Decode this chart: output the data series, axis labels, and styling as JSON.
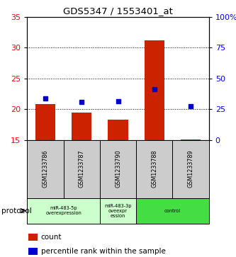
{
  "title": "GDS5347 / 1553401_at",
  "samples": [
    "GSM1233786",
    "GSM1233787",
    "GSM1233790",
    "GSM1233788",
    "GSM1233789"
  ],
  "bar_values": [
    20.8,
    19.5,
    18.3,
    31.2,
    15.1
  ],
  "bar_color": "#cc2200",
  "marker_values_left": [
    21.8,
    21.2,
    21.3,
    23.2,
    20.5
  ],
  "marker_color": "#0000cc",
  "left_ylim": [
    15,
    35
  ],
  "left_yticks": [
    15,
    20,
    25,
    30,
    35
  ],
  "right_ylim": [
    0,
    100
  ],
  "right_yticks": [
    0,
    25,
    50,
    75,
    100
  ],
  "right_yticklabels": [
    "0",
    "25",
    "50",
    "75",
    "100%"
  ],
  "bar_bottom": 15,
  "protocol_groups": [
    {
      "start": 0,
      "end": 1,
      "label": "miR-483-5p\noverexpression",
      "color": "#ccffcc"
    },
    {
      "start": 2,
      "end": 2,
      "label": "miR-483-3p\noveexpr\nession",
      "color": "#ccffcc"
    },
    {
      "start": 3,
      "end": 4,
      "label": "control",
      "color": "#44dd44"
    }
  ],
  "legend_count_label": "count",
  "legend_marker_label": "percentile rank within the sample",
  "protocol_label": "protocol",
  "gray_box_color": "#cccccc",
  "bar_color_hex": "#cc2200",
  "marker_color_hex": "#0000cc",
  "dotted_grid_color": "#888888"
}
